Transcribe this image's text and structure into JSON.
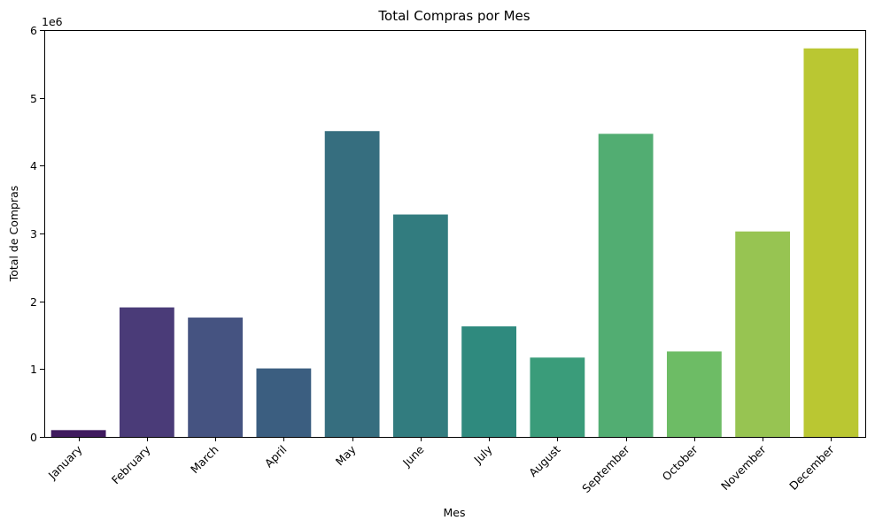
{
  "chart_data": {
    "type": "bar",
    "title": "Total Compras por Mes",
    "xlabel": "Mes",
    "ylabel": "Total de Compras",
    "y_offset_text": "1e6",
    "y_scale_factor": 1000000,
    "categories": [
      "January",
      "February",
      "March",
      "April",
      "May",
      "June",
      "July",
      "August",
      "September",
      "October",
      "November",
      "December"
    ],
    "values": [
      100000,
      1910000,
      1760000,
      1010000,
      4510000,
      3280000,
      1630000,
      1170000,
      4470000,
      1260000,
      3030000,
      5730000
    ],
    "colors": [
      "#440154",
      "#482677",
      "#3e4989",
      "#31688e",
      "#26828e",
      "#1f9e89",
      "#35b779",
      "#6ece58",
      "#b5de2b",
      "#fde725",
      "#5ec962",
      "#a0da39"
    ],
    "bar_colors": [
      "#3f1a5e",
      "#4a3b78",
      "#455381",
      "#3b5e80",
      "#366e7f",
      "#327c7f",
      "#2f8a7e",
      "#3a9c7a",
      "#52ad72",
      "#6dbc65",
      "#97c452",
      "#bac732"
    ],
    "ylim": [
      0,
      6000000
    ],
    "y_ticks": [
      0,
      1,
      2,
      3,
      4,
      5,
      6
    ],
    "grid": false,
    "legend": "none"
  }
}
